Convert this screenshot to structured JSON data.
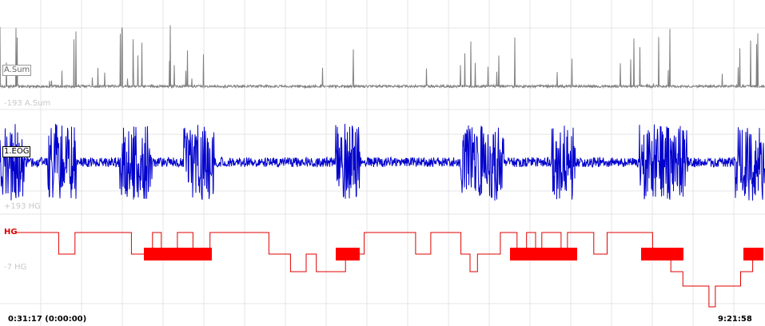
{
  "traces": [
    {
      "label": "A.Sum",
      "scale_label": "-193 A.Sum"
    },
    {
      "label": "1.EOG",
      "scale_label": "+193 HG"
    },
    {
      "label": "HG",
      "scale_label": "-7 HG"
    }
  ],
  "time_axis": {
    "start": "0:31:17 (0:00:00)",
    "end": "9:21:58"
  }
}
